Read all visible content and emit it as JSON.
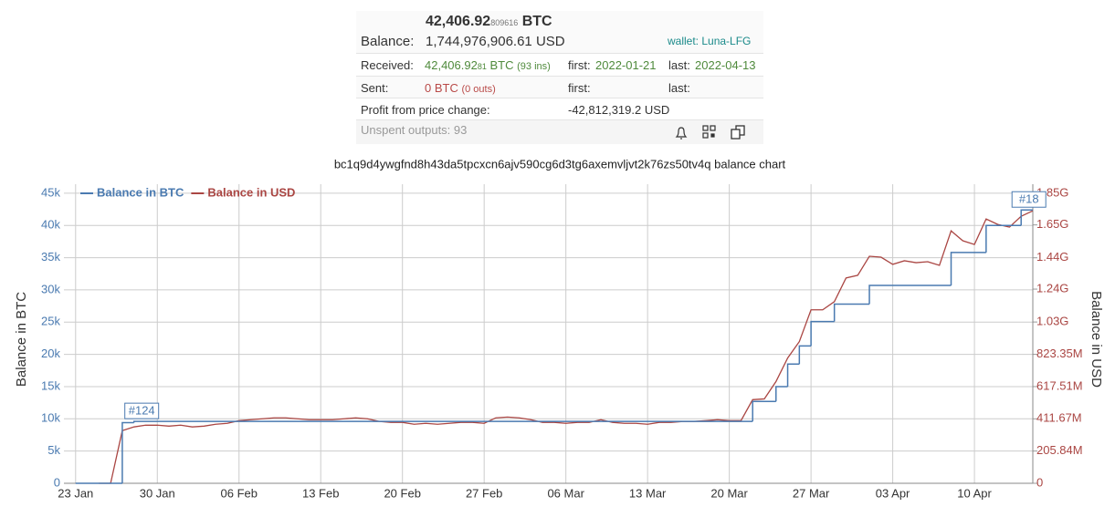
{
  "panel": {
    "amount": "42,406.92",
    "amount_small": "809616",
    "amount_unit": "BTC",
    "balance_label": "Balance:",
    "balance": "1,744,976,906.61 USD",
    "wallet": "wallet: Luna-LFG",
    "received": {
      "label": "Received:",
      "value": "42,406.92",
      "small": "81",
      "unit": "BTC",
      "count": "(93 ins)",
      "first_label": "first:",
      "first": "2022-01-21",
      "last_label": "last:",
      "last": "2022-04-13"
    },
    "sent": {
      "label": "Sent:",
      "value": "0 BTC",
      "count": "(0 outs)",
      "first_label": "first:",
      "last_label": "last:"
    },
    "profit": {
      "label": "Profit from price change:",
      "value": "-42,812,319.2 USD"
    },
    "unspent": "Unspent outputs: 93"
  },
  "chart_data": {
    "type": "line",
    "title": "bc1q9d4ywgfnd8h43da5tpcxcn6ajv590cg6d3tg6axemvljvt2k76zs50tv4q balance chart",
    "y_label": "Balance in BTC",
    "y2_label": "Balance in USD",
    "xlim": [
      "22 Jan",
      "15 Apr"
    ],
    "xticks": [
      "23 Jan",
      "30 Jan",
      "06 Feb",
      "13 Feb",
      "20 Feb",
      "27 Feb",
      "06 Mar",
      "13 Mar",
      "20 Mar",
      "27 Mar",
      "03 Apr",
      "10 Apr"
    ],
    "ylim": [
      0,
      46400
    ],
    "yticks": [
      0,
      {
        "value": 5000,
        "label": "5k"
      },
      {
        "value": 10000,
        "label": "10k"
      },
      {
        "value": 15000,
        "label": "15k"
      },
      {
        "value": 20000,
        "label": "20k"
      },
      {
        "value": 25000,
        "label": "25k"
      },
      {
        "value": 30000,
        "label": "30k"
      },
      {
        "value": 35000,
        "label": "35k"
      },
      {
        "value": 40000,
        "label": "40k"
      },
      {
        "value": 45000,
        "label": "45k"
      }
    ],
    "y2lim": [
      0,
      1910000000
    ],
    "y2ticks": [
      0,
      {
        "value": 205840000,
        "label": "205.84M"
      },
      {
        "value": 411670000,
        "label": "411.67M"
      },
      {
        "value": 617510000,
        "label": "617.51M"
      },
      {
        "value": 823350000,
        "label": "823.35M"
      },
      {
        "value": 1030000000,
        "label": "1.03G"
      },
      {
        "value": 1240000000,
        "label": "1.24G"
      },
      {
        "value": 1440000000,
        "label": "1.44G"
      },
      {
        "value": 1650000000,
        "label": "1.65G"
      },
      {
        "value": 1850000000,
        "label": "1.85G"
      }
    ],
    "grid": true,
    "legend": "top-left",
    "series": [
      {
        "name": "Balance in BTC",
        "color": "#4a7ab0",
        "step": true,
        "x": [
          "23 Jan",
          "27 Jan",
          "28 Jan",
          "22 Mar",
          "24 Mar",
          "25 Mar",
          "26 Mar",
          "27 Mar",
          "29 Mar",
          "01 Apr",
          "08 Apr",
          "11 Apr",
          "14 Apr"
        ],
        "values": [
          0,
          9400,
          9600,
          12700,
          15000,
          18500,
          21300,
          25100,
          27800,
          30700,
          35800,
          40000,
          42406.92
        ]
      },
      {
        "name": "Balance in USD",
        "color": "#aa4643",
        "axis": "y2",
        "x": [
          "25 Jan",
          "26 Jan",
          "27 Jan",
          "28 Jan",
          "29 Jan",
          "30 Jan",
          "31 Jan",
          "01 Feb",
          "02 Feb",
          "03 Feb",
          "04 Feb",
          "05 Feb",
          "06 Feb",
          "07 Feb",
          "08 Feb",
          "09 Feb",
          "10 Feb",
          "11 Feb",
          "12 Feb",
          "13 Feb",
          "14 Feb",
          "15 Feb",
          "16 Feb",
          "17 Feb",
          "18 Feb",
          "19 Feb",
          "20 Feb",
          "21 Feb",
          "22 Feb",
          "23 Feb",
          "24 Feb",
          "25 Feb",
          "26 Feb",
          "27 Feb",
          "28 Feb",
          "01 Mar",
          "02 Mar",
          "03 Mar",
          "04 Mar",
          "05 Mar",
          "06 Mar",
          "07 Mar",
          "08 Mar",
          "09 Mar",
          "10 Mar",
          "11 Mar",
          "12 Mar",
          "13 Mar",
          "14 Mar",
          "15 Mar",
          "16 Mar",
          "17 Mar",
          "18 Mar",
          "19 Mar",
          "20 Mar",
          "21 Mar",
          "22 Mar",
          "23 Mar",
          "24 Mar",
          "25 Mar",
          "26 Mar",
          "27 Mar",
          "28 Mar",
          "29 Mar",
          "30 Mar",
          "31 Mar",
          "01 Apr",
          "02 Apr",
          "03 Apr",
          "04 Apr",
          "05 Apr",
          "06 Apr",
          "07 Apr",
          "08 Apr",
          "09 Apr",
          "10 Apr",
          "11 Apr",
          "12 Apr",
          "13 Apr",
          "14 Apr",
          "15 Apr"
        ],
        "values": [
          0,
          0,
          336000000,
          360000000,
          371000000,
          371000000,
          365000000,
          371000000,
          360000000,
          365000000,
          377000000,
          383000000,
          400000000,
          406000000,
          412000000,
          418000000,
          418000000,
          412000000,
          406000000,
          406000000,
          406000000,
          412000000,
          418000000,
          412000000,
          395000000,
          389000000,
          389000000,
          377000000,
          383000000,
          377000000,
          383000000,
          389000000,
          389000000,
          383000000,
          418000000,
          423000000,
          418000000,
          406000000,
          389000000,
          389000000,
          383000000,
          389000000,
          389000000,
          406000000,
          389000000,
          383000000,
          383000000,
          377000000,
          389000000,
          389000000,
          395000000,
          395000000,
          400000000,
          406000000,
          400000000,
          400000000,
          534000000,
          539000000,
          650000000,
          800000000,
          905000000,
          1108000000,
          1108000000,
          1160000000,
          1311000000,
          1328000000,
          1450000000,
          1444000000,
          1398000000,
          1421000000,
          1409000000,
          1415000000,
          1392000000,
          1612000000,
          1549000000,
          1525000000,
          1688000000,
          1653000000,
          1636000000,
          1705000000,
          1740000000
        ]
      }
    ],
    "annotations": [
      {
        "text": "#124",
        "x": "28 Jan"
      },
      {
        "text": "#18",
        "x": "14 Apr"
      }
    ]
  }
}
